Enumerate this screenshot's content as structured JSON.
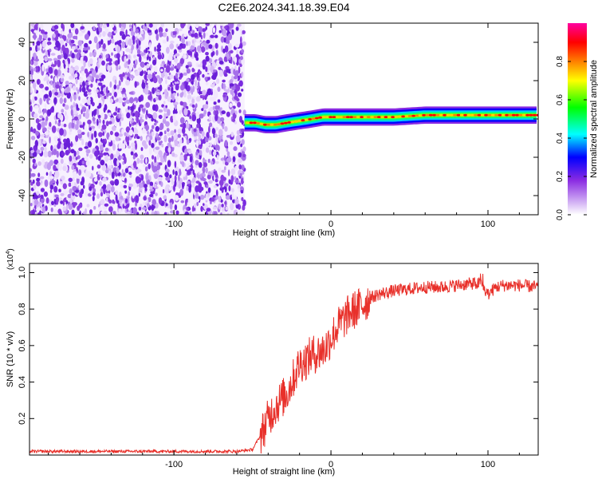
{
  "chart_data": [
    {
      "type": "heatmap",
      "title": "C2E6.2024.341.18.39.E04",
      "xlabel": "Height of straight line (km)",
      "ylabel": "Frequency (Hz)",
      "xlim": [
        -192,
        132
      ],
      "ylim": [
        -50,
        50
      ],
      "x_ticks": [
        -100,
        0,
        100
      ],
      "x_tick_labels": [
        "-100",
        "0",
        "100"
      ],
      "y_ticks": [
        -40,
        -20,
        0,
        20,
        40
      ],
      "y_tick_labels": [
        "-40",
        "-20",
        "0",
        "20",
        "40"
      ],
      "colorbar": {
        "label": "Normalized spectral amplitude",
        "range": [
          0,
          1
        ],
        "ticks": [
          0.0,
          0.2,
          0.4,
          0.6,
          0.8
        ],
        "tick_labels": [
          "0.0",
          "0.2",
          "0.4",
          "0.6",
          "0.8"
        ],
        "colormap": [
          "#ffffff",
          "#8a2be2",
          "#0000ff",
          "#00ffff",
          "#00ff00",
          "#ffff00",
          "#ff8000",
          "#ff0000",
          "#ff00ff"
        ]
      },
      "regions": [
        {
          "x_range": [
            -192,
            -55
          ],
          "description_value": "scattered noise, amplitude 0.1-0.3",
          "amplitude": 0.2
        },
        {
          "x_range": [
            -55,
            132
          ],
          "band_center_hz": 0,
          "band_halfwidth_hz": 3,
          "amplitude": 0.95
        }
      ],
      "ridge": {
        "x": [
          -55,
          -48,
          -42,
          -35,
          -28,
          -20,
          -12,
          -5,
          5,
          20,
          40,
          60,
          80,
          95,
          110,
          132
        ],
        "y": [
          -2,
          -2,
          -3,
          -3,
          -2,
          -1,
          0,
          1,
          1,
          1,
          1,
          2,
          2,
          2,
          2,
          2
        ]
      },
      "grid": false
    },
    {
      "type": "line",
      "xlabel": "Height of straight line (km)",
      "ylabel": "SNR (10 * v/v)",
      "y_multiplier_label": "(x10",
      "y_multiplier_exp": "4",
      "y_multiplier_close": ")",
      "xlim": [
        -192,
        132
      ],
      "ylim": [
        0,
        1.05
      ],
      "x_ticks": [
        -100,
        0,
        100
      ],
      "x_tick_labels": [
        "-100",
        "0",
        "100"
      ],
      "y_ticks": [
        0.2,
        0.4,
        0.6,
        0.8,
        1.0
      ],
      "y_tick_labels": [
        "0.2",
        "0.4",
        "0.6",
        "0.8",
        "1.0"
      ],
      "series": [
        {
          "color": "#e8302a",
          "x": [
            -192,
            -150,
            -100,
            -60,
            -50,
            -44,
            -40,
            -36,
            -32,
            -28,
            -24,
            -20,
            -16,
            -12,
            -8,
            -4,
            0,
            4,
            8,
            12,
            16,
            20,
            25,
            30,
            40,
            50,
            60,
            70,
            80,
            90,
            95,
            100,
            105,
            110,
            120,
            132
          ],
          "y": [
            0.02,
            0.02,
            0.02,
            0.02,
            0.03,
            0.12,
            0.2,
            0.26,
            0.3,
            0.34,
            0.42,
            0.5,
            0.52,
            0.55,
            0.56,
            0.58,
            0.64,
            0.7,
            0.74,
            0.78,
            0.8,
            0.82,
            0.86,
            0.88,
            0.9,
            0.91,
            0.92,
            0.92,
            0.93,
            0.94,
            0.94,
            0.88,
            0.92,
            0.93,
            0.93,
            0.92
          ]
        }
      ],
      "grid": false
    }
  ]
}
